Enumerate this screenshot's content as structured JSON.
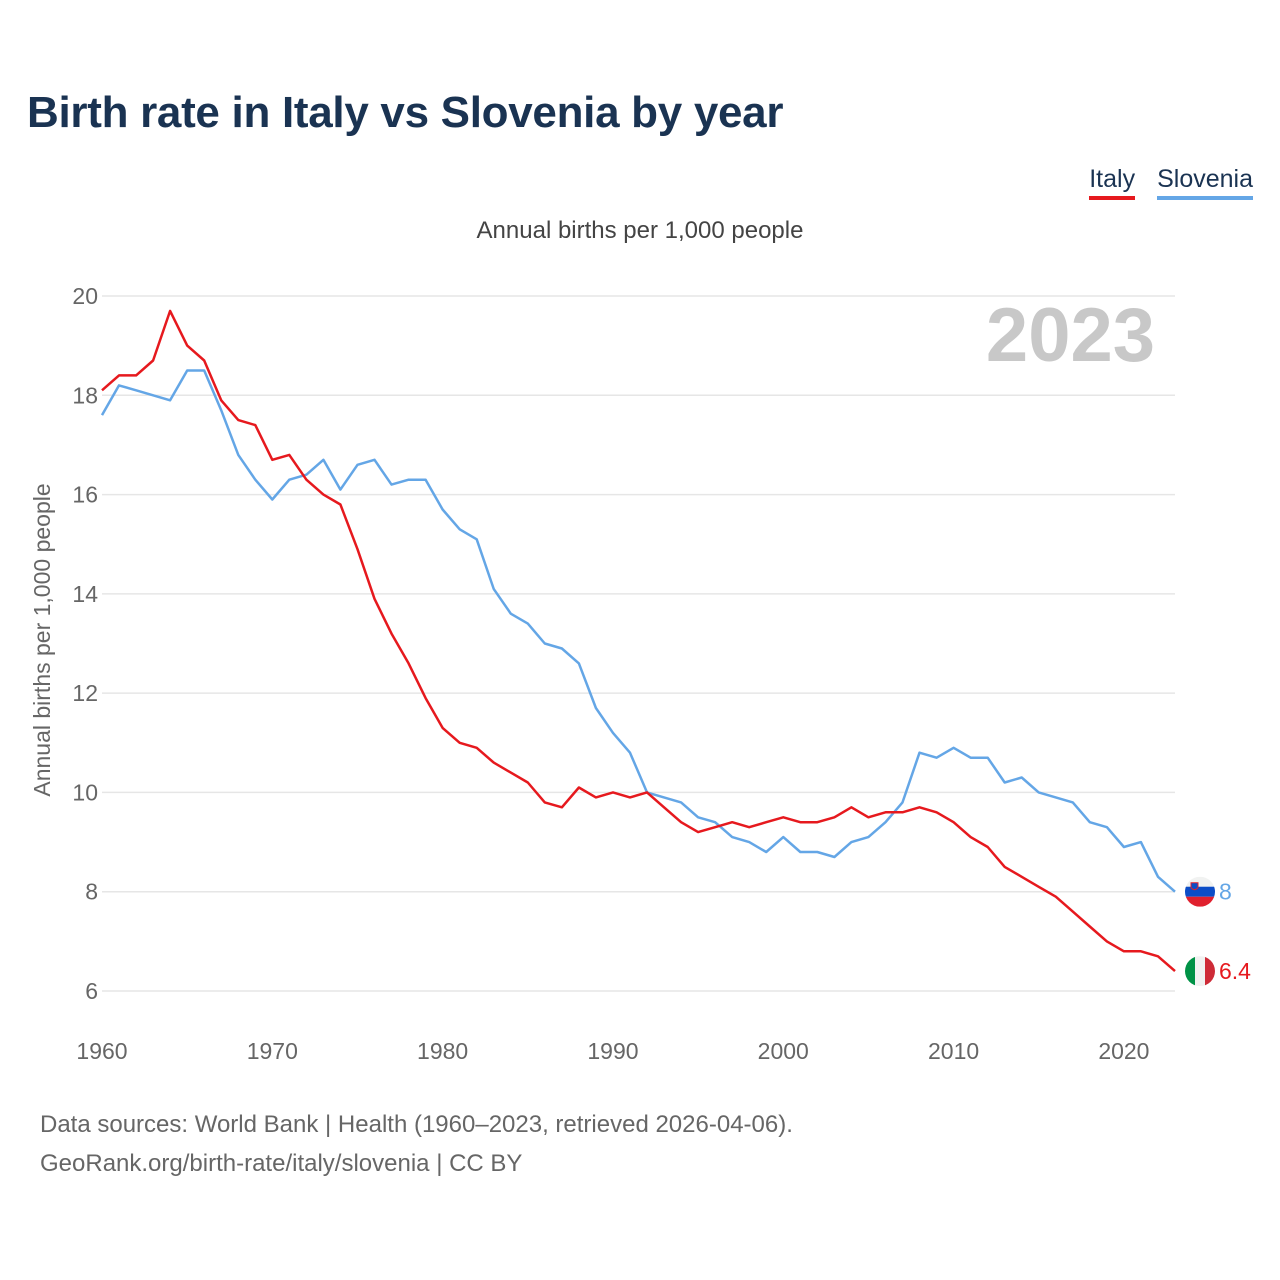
{
  "title": "Birth rate in Italy vs Slovenia by year",
  "legend": {
    "italy": "Italy",
    "slovenia": "Slovenia"
  },
  "footer": {
    "line1": "Data sources: World Bank | Health (1960–2023, retrieved 2026-04-06).",
    "line2": "GeoRank.org/birth-rate/italy/slovenia | CC BY"
  },
  "colors": {
    "italy": "#e6191e",
    "slovenia": "#64a6e6",
    "grid": "#e6e6e6",
    "axis_text": "#666666",
    "watermark": "#c8c8c8"
  },
  "chart_data": {
    "type": "line",
    "title": "Annual births per 1,000 people",
    "xlabel": "",
    "ylabel": "Annual births per 1,000 people",
    "year_label": "2023",
    "xlim": [
      1960,
      2023
    ],
    "ylim": [
      6,
      20
    ],
    "xticks": [
      1960,
      1970,
      1980,
      1990,
      2000,
      2010,
      2020
    ],
    "yticks": [
      6,
      8,
      10,
      12,
      14,
      16,
      18,
      20
    ],
    "x": [
      1960,
      1961,
      1962,
      1963,
      1964,
      1965,
      1966,
      1967,
      1968,
      1969,
      1970,
      1971,
      1972,
      1973,
      1974,
      1975,
      1976,
      1977,
      1978,
      1979,
      1980,
      1981,
      1982,
      1983,
      1984,
      1985,
      1986,
      1987,
      1988,
      1989,
      1990,
      1991,
      1992,
      1993,
      1994,
      1995,
      1996,
      1997,
      1998,
      1999,
      2000,
      2001,
      2002,
      2003,
      2004,
      2005,
      2006,
      2007,
      2008,
      2009,
      2010,
      2011,
      2012,
      2013,
      2014,
      2015,
      2016,
      2017,
      2018,
      2019,
      2020,
      2021,
      2022,
      2023
    ],
    "series": [
      {
        "name": "Italy",
        "key": "italy",
        "end_label": "6.4",
        "values": [
          18.1,
          18.4,
          18.4,
          18.7,
          19.7,
          19.0,
          18.7,
          17.9,
          17.5,
          17.4,
          16.7,
          16.8,
          16.3,
          16.0,
          15.8,
          14.9,
          13.9,
          13.2,
          12.6,
          11.9,
          11.3,
          11.0,
          10.9,
          10.6,
          10.4,
          10.2,
          9.8,
          9.7,
          10.1,
          9.9,
          10.0,
          9.9,
          10.0,
          9.7,
          9.4,
          9.2,
          9.3,
          9.4,
          9.3,
          9.4,
          9.5,
          9.4,
          9.4,
          9.5,
          9.7,
          9.5,
          9.6,
          9.6,
          9.7,
          9.6,
          9.4,
          9.1,
          8.9,
          8.5,
          8.3,
          8.1,
          7.9,
          7.6,
          7.3,
          7.0,
          6.8,
          6.8,
          6.7,
          6.4
        ]
      },
      {
        "name": "Slovenia",
        "key": "slovenia",
        "end_label": "8",
        "values": [
          17.6,
          18.2,
          18.1,
          18.0,
          17.9,
          18.5,
          18.5,
          17.7,
          16.8,
          16.3,
          15.9,
          16.3,
          16.4,
          16.7,
          16.1,
          16.6,
          16.7,
          16.2,
          16.3,
          16.3,
          15.7,
          15.3,
          15.1,
          14.1,
          13.6,
          13.4,
          13.0,
          12.9,
          12.6,
          11.7,
          11.2,
          10.8,
          10.0,
          9.9,
          9.8,
          9.5,
          9.4,
          9.1,
          9.0,
          8.8,
          9.1,
          8.8,
          8.8,
          8.7,
          9.0,
          9.1,
          9.4,
          9.8,
          10.8,
          10.7,
          10.9,
          10.7,
          10.7,
          10.2,
          10.3,
          10.0,
          9.9,
          9.8,
          9.4,
          9.3,
          8.9,
          9.0,
          8.3,
          8.0
        ]
      }
    ]
  }
}
